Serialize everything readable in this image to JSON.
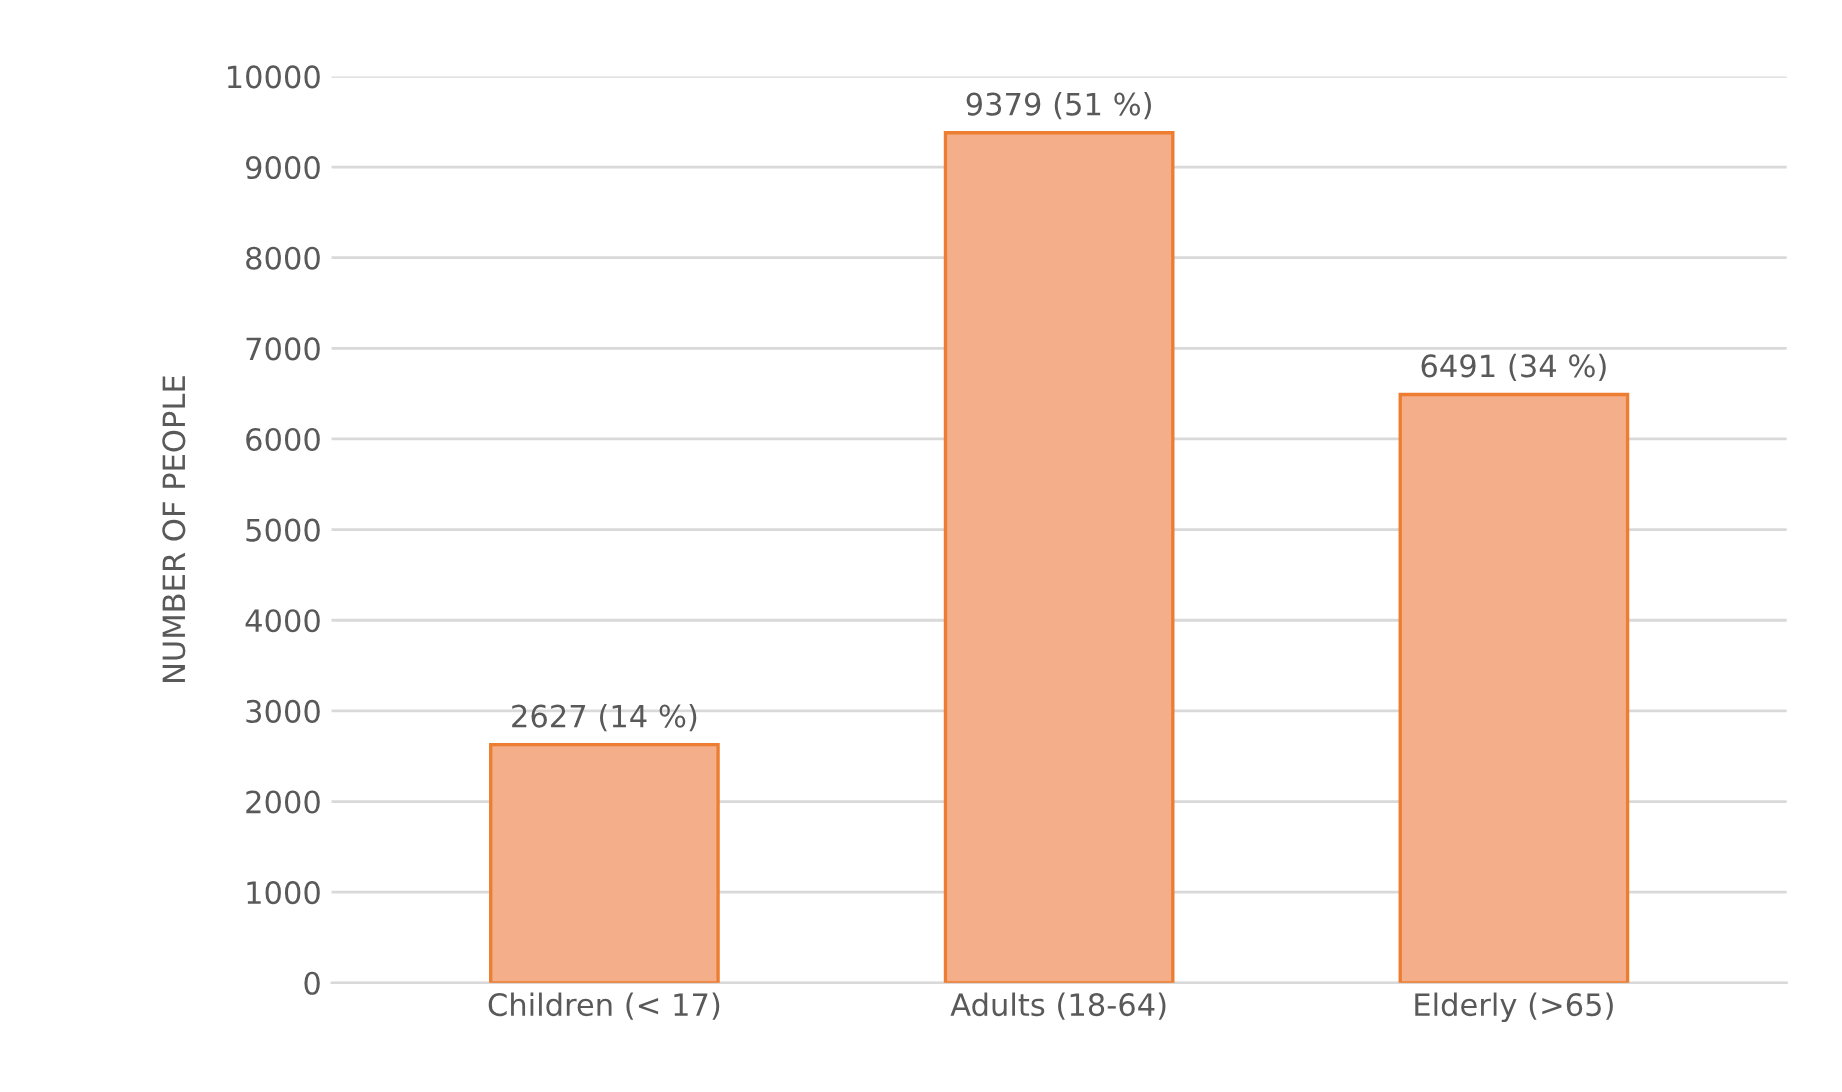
{
  "chart_data": {
    "type": "bar",
    "categories": [
      "Children (< 17)",
      "Adults (18-64)",
      "Elderly (>65)"
    ],
    "values": [
      2627,
      9379,
      6491
    ],
    "value_labels": [
      "2627 (14 %)",
      "9379 (51 %)",
      "6491 (34 %)"
    ],
    "color": "#f4ae8a",
    "ylabel": "NUMBER OF PEOPLE",
    "ylim": [
      0,
      10000
    ],
    "yticks": [
      0,
      1000,
      2000,
      3000,
      4000,
      5000,
      6000,
      7000,
      8000,
      9000,
      10000
    ],
    "grid": "y",
    "legend": false
  }
}
